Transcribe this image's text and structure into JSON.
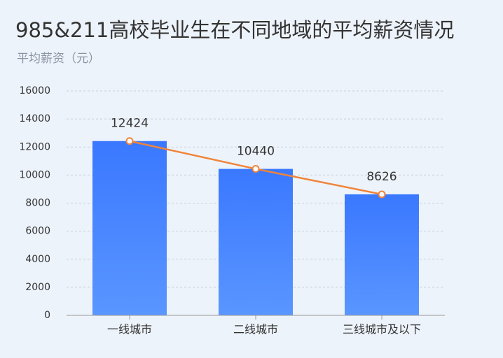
{
  "chart_data": {
    "type": "bar",
    "title": "985&211高校毕业生在不同地域的平均薪资情况",
    "subtitle": "平均薪资（元）",
    "categories": [
      "一线城市",
      "二线城市",
      "三线城市及以下"
    ],
    "values": [
      12424,
      10440,
      8626
    ],
    "color": "#3d7dff",
    "line_overlay": true,
    "line_color": "#f0843a",
    "ylim": [
      0,
      16000
    ],
    "yticks": [
      0,
      2000,
      4000,
      6000,
      8000,
      10000,
      12000,
      14000,
      16000
    ],
    "grid": true
  }
}
